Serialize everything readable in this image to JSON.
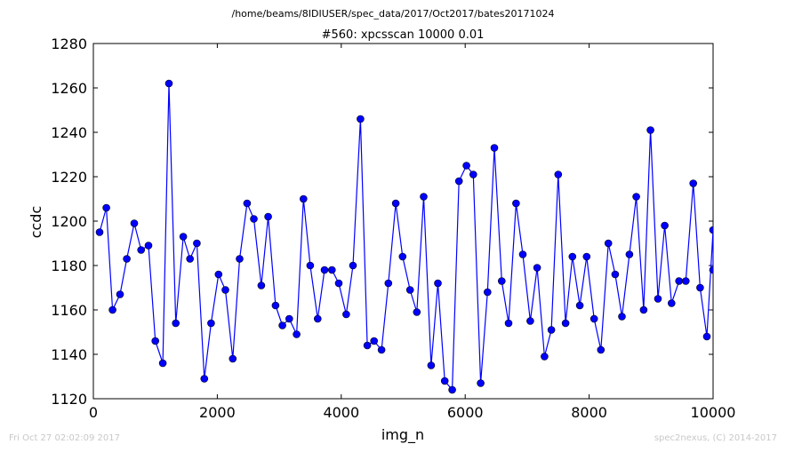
{
  "footer": {
    "timestamp": "Fri Oct 27 02:02:09 2017",
    "credit": "spec2nexus, (C) 2014-2017"
  },
  "chart_data": {
    "type": "line",
    "suptitle": "/home/beams/8IDIUSER/spec_data/2017/Oct2017/bates20171024",
    "title": "#560: xpcsscan 10000 0.01",
    "xlabel": "img_n",
    "ylabel": "ccdc",
    "xlim": [
      0,
      10000
    ],
    "ylim": [
      1120,
      1280
    ],
    "xticks": [
      0,
      2000,
      4000,
      6000,
      8000,
      10000
    ],
    "yticks": [
      1120,
      1140,
      1160,
      1180,
      1200,
      1220,
      1240,
      1260,
      1280
    ],
    "grid": false,
    "marker": "circle",
    "color": "#0000ff",
    "x": [
      100,
      210,
      310,
      430,
      540,
      660,
      770,
      890,
      1000,
      1120,
      1220,
      1330,
      1450,
      1560,
      1670,
      1790,
      1900,
      2020,
      2130,
      2250,
      2360,
      2480,
      2590,
      2710,
      2820,
      2940,
      3050,
      3160,
      3280,
      3390,
      3500,
      3620,
      3730,
      3850,
      3960,
      4080,
      4190,
      4310,
      4420,
      4530,
      4650,
      4760,
      4880,
      4990,
      5110,
      5220,
      5330,
      5450,
      5560,
      5670,
      5790,
      5900,
      6020,
      6130,
      6250,
      6360,
      6470,
      6590,
      6700,
      6820,
      6930,
      7050,
      7160,
      7280,
      7390,
      7500,
      7620,
      7730,
      7850,
      7960,
      8080,
      8190,
      8310,
      8420,
      8530,
      8650,
      8760,
      8880,
      8990,
      9110,
      9220,
      9330,
      9450,
      9560,
      9680,
      9790,
      9900,
      10000,
      10000
    ],
    "y": [
      1195,
      1206,
      1160,
      1167,
      1183,
      1199,
      1187,
      1189,
      1146,
      1136,
      1262,
      1154,
      1193,
      1183,
      1190,
      1129,
      1154,
      1176,
      1169,
      1138,
      1183,
      1208,
      1201,
      1171,
      1202,
      1162,
      1153,
      1156,
      1149,
      1210,
      1180,
      1156,
      1178,
      1178,
      1172,
      1158,
      1180,
      1246,
      1144,
      1146,
      1142,
      1172,
      1208,
      1184,
      1169,
      1159,
      1211,
      1135,
      1172,
      1128,
      1124,
      1218,
      1225,
      1221,
      1127,
      1168,
      1233,
      1173,
      1154,
      1208,
      1185,
      1155,
      1179,
      1139,
      1151,
      1221,
      1154,
      1184,
      1162,
      1184,
      1156,
      1142,
      1190,
      1176,
      1157,
      1185,
      1211,
      1160,
      1241,
      1165,
      1198,
      1163,
      1173,
      1173,
      1217,
      1170,
      1148,
      1196,
      1178
    ]
  }
}
